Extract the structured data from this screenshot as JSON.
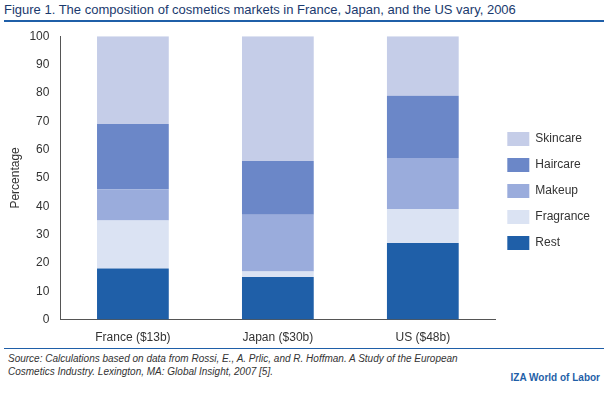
{
  "chart_data": {
    "type": "bar",
    "title": "Figure 1. The composition of cosmetics markets in France, Japan, and the US vary, 2006",
    "y_label": "Percentage",
    "categories": [
      "France ($13b)",
      "Japan ($30b)",
      "US ($48b)"
    ],
    "series": [
      {
        "name": "Rest",
        "color": "#1f5fa8",
        "values": [
          18,
          15,
          27
        ]
      },
      {
        "name": "Fragrance",
        "color": "#dbe3f3",
        "values": [
          17,
          2,
          12
        ]
      },
      {
        "name": "Makeup",
        "color": "#9aacdc",
        "values": [
          11,
          20,
          18
        ]
      },
      {
        "name": "Haircare",
        "color": "#6b87c8",
        "values": [
          23,
          19,
          22
        ]
      },
      {
        "name": "Skincare",
        "color": "#c5cde8",
        "values": [
          31,
          44,
          21
        ]
      }
    ],
    "stacked": true,
    "ylim": [
      0,
      100
    ],
    "yticks": [
      0,
      10,
      20,
      30,
      40,
      50,
      60,
      70,
      80,
      90,
      100
    ],
    "grid": false,
    "legend": "right",
    "annotations": [
      "Source: Calculations based on data from Rossi, E., A. Prlic, and R. Hoffman. A Study of the European Cosmetics Industry. Lexington, MA: Global Insight, 2007 [5].",
      "IZA World of Labor"
    ]
  }
}
